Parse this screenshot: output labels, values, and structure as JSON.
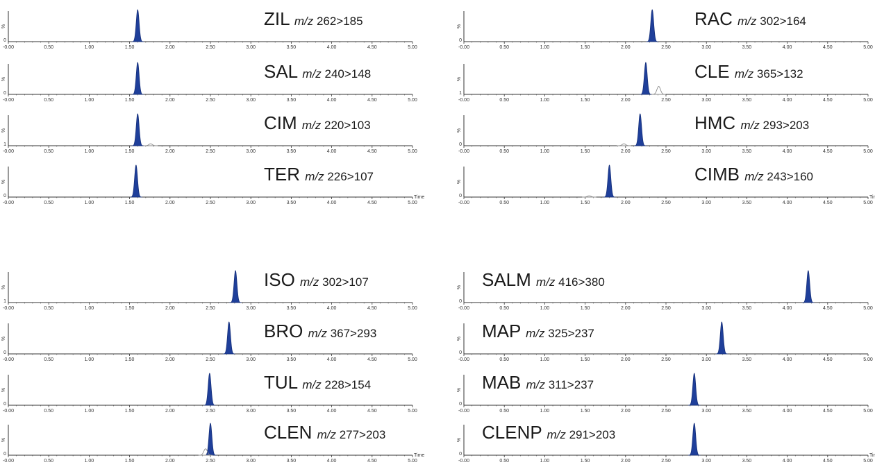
{
  "chart_data": [
    {
      "type": "line",
      "compound": "ZIL",
      "mz_label": "m/z",
      "transition": "262>185",
      "y_axis_symbol": "%",
      "y_zero_label": "0",
      "x_ticks": [
        "-0.00",
        "0.50",
        "1.00",
        "1.50",
        "2.00",
        "2.50",
        "3.00",
        "3.50",
        "4.00",
        "4.50",
        "5.00"
      ],
      "xlim": [
        0,
        5
      ],
      "time_label": "",
      "peaks": [
        {
          "rt": 1.6,
          "height": 1.0,
          "filled": true
        }
      ]
    },
    {
      "type": "line",
      "compound": "SAL",
      "mz_label": "m/z",
      "transition": "240>148",
      "y_axis_symbol": "%",
      "y_zero_label": "0",
      "x_ticks": [
        "-0.00",
        "0.50",
        "1.00",
        "1.50",
        "2.00",
        "2.50",
        "3.00",
        "3.50",
        "4.00",
        "4.50",
        "5.00"
      ],
      "xlim": [
        0,
        5
      ],
      "time_label": "",
      "peaks": [
        {
          "rt": 1.6,
          "height": 1.0,
          "filled": true
        }
      ]
    },
    {
      "type": "line",
      "compound": "CIM",
      "mz_label": "m/z",
      "transition": "220>103",
      "y_axis_symbol": "%",
      "y_zero_label": "1",
      "x_ticks": [
        "-0.00",
        "0.50",
        "1.00",
        "1.50",
        "2.00",
        "2.50",
        "3.00",
        "3.50",
        "4.00",
        "4.50",
        "5.00"
      ],
      "xlim": [
        0,
        5
      ],
      "time_label": "",
      "peaks": [
        {
          "rt": 1.6,
          "height": 1.0,
          "filled": true
        },
        {
          "rt": 1.76,
          "height": 0.06,
          "filled": false
        }
      ]
    },
    {
      "type": "line",
      "compound": "TER",
      "mz_label": "m/z",
      "transition": "226>107",
      "y_axis_symbol": "%",
      "y_zero_label": "0",
      "x_ticks": [
        "-0.00",
        "0.50",
        "1.00",
        "1.50",
        "2.00",
        "2.50",
        "3.00",
        "3.50",
        "4.00",
        "4.50",
        "5.00"
      ],
      "xlim": [
        0,
        5
      ],
      "time_label": "Time",
      "peaks": [
        {
          "rt": 1.58,
          "height": 1.0,
          "filled": true
        }
      ]
    },
    {
      "type": "line",
      "compound": "RAC",
      "mz_label": "m/z",
      "transition": "302>164",
      "y_axis_symbol": "%",
      "y_zero_label": "0",
      "x_ticks": [
        "-0.00",
        "0.50",
        "1.00",
        "1.50",
        "2.00",
        "2.50",
        "3.00",
        "3.50",
        "4.00",
        "4.50",
        "5.00"
      ],
      "xlim": [
        0,
        5
      ],
      "time_label": "",
      "peaks": [
        {
          "rt": 2.33,
          "height": 1.0,
          "filled": true
        }
      ]
    },
    {
      "type": "line",
      "compound": "CLE",
      "mz_label": "m/z",
      "transition": "365>132",
      "y_axis_symbol": "%",
      "y_zero_label": "1",
      "x_ticks": [
        "-0.00",
        "0.50",
        "1.00",
        "1.50",
        "2.00",
        "2.50",
        "3.00",
        "3.50",
        "4.00",
        "4.50",
        "5.00"
      ],
      "xlim": [
        0,
        5
      ],
      "time_label": "",
      "peaks": [
        {
          "rt": 2.25,
          "height": 1.0,
          "filled": true
        },
        {
          "rt": 2.41,
          "height": 0.25,
          "filled": false
        }
      ]
    },
    {
      "type": "line",
      "compound": "HMC",
      "mz_label": "m/z",
      "transition": "293>203",
      "y_axis_symbol": "%",
      "y_zero_label": "0",
      "x_ticks": [
        "-0.00",
        "0.50",
        "1.00",
        "1.50",
        "2.00",
        "2.50",
        "3.00",
        "3.50",
        "4.00",
        "4.50",
        "5.00"
      ],
      "xlim": [
        0,
        5
      ],
      "time_label": "",
      "peaks": [
        {
          "rt": 2.18,
          "height": 1.0,
          "filled": true
        },
        {
          "rt": 1.98,
          "height": 0.06,
          "filled": false
        }
      ]
    },
    {
      "type": "line",
      "compound": "CIMB",
      "mz_label": "m/z",
      "transition": "243>160",
      "y_axis_symbol": "%",
      "y_zero_label": "0",
      "x_ticks": [
        "-0.00",
        "0.50",
        "1.00",
        "1.50",
        "2.00",
        "2.50",
        "3.00",
        "3.50",
        "4.00",
        "4.50",
        "5.00"
      ],
      "xlim": [
        0,
        5
      ],
      "time_label": "Time",
      "peaks": [
        {
          "rt": 1.8,
          "height": 1.0,
          "filled": true
        },
        {
          "rt": 1.55,
          "height": 0.04,
          "filled": false
        }
      ]
    },
    {
      "type": "line",
      "compound": "ISO",
      "mz_label": "m/z",
      "transition": "302>107",
      "y_axis_symbol": "%",
      "y_zero_label": "1",
      "x_ticks": [
        "-0.00",
        "0.50",
        "1.00",
        "1.50",
        "2.00",
        "2.50",
        "3.00",
        "3.50",
        "4.00",
        "4.50",
        "5.00"
      ],
      "xlim": [
        0,
        5
      ],
      "time_label": "",
      "peaks": [
        {
          "rt": 2.81,
          "height": 1.0,
          "filled": true
        }
      ]
    },
    {
      "type": "line",
      "compound": "BRO",
      "mz_label": "m/z",
      "transition": "367>293",
      "y_axis_symbol": "%",
      "y_zero_label": "0",
      "x_ticks": [
        "-0.00",
        "0.50",
        "1.00",
        "1.50",
        "2.00",
        "2.50",
        "3.00",
        "3.50",
        "4.00",
        "4.50",
        "5.00"
      ],
      "xlim": [
        0,
        5
      ],
      "time_label": "",
      "peaks": [
        {
          "rt": 2.73,
          "height": 1.0,
          "filled": true
        }
      ]
    },
    {
      "type": "line",
      "compound": "TUL",
      "mz_label": "m/z",
      "transition": "228>154",
      "y_axis_symbol": "%",
      "y_zero_label": "0",
      "x_ticks": [
        "-0.00",
        "0.50",
        "1.00",
        "1.50",
        "2.00",
        "2.50",
        "3.00",
        "3.50",
        "4.00",
        "4.50",
        "5.00"
      ],
      "xlim": [
        0,
        5
      ],
      "time_label": "",
      "peaks": [
        {
          "rt": 2.49,
          "height": 1.0,
          "filled": true
        }
      ]
    },
    {
      "type": "line",
      "compound": "CLEN",
      "mz_label": "m/z",
      "transition": "277>203",
      "y_axis_symbol": "%",
      "y_zero_label": "0",
      "x_ticks": [
        "-0.00",
        "0.50",
        "1.00",
        "1.50",
        "2.00",
        "2.50",
        "3.00",
        "3.50",
        "4.00",
        "4.50",
        "5.00"
      ],
      "xlim": [
        0,
        5
      ],
      "time_label": "Time",
      "peaks": [
        {
          "rt": 2.5,
          "height": 1.0,
          "filled": true
        },
        {
          "rt": 2.44,
          "height": 0.2,
          "filled": false
        }
      ]
    },
    {
      "type": "line",
      "compound": "SALM",
      "mz_label": "m/z",
      "transition": "416>380",
      "y_axis_symbol": "%",
      "y_zero_label": "0",
      "x_ticks": [
        "-0.00",
        "0.50",
        "1.00",
        "1.50",
        "2.00",
        "2.50",
        "3.00",
        "3.50",
        "4.00",
        "4.50",
        "5.00"
      ],
      "xlim": [
        0,
        5
      ],
      "time_label": "",
      "peaks": [
        {
          "rt": 4.26,
          "height": 1.0,
          "filled": true
        }
      ]
    },
    {
      "type": "line",
      "compound": "MAP",
      "mz_label": "m/z",
      "transition": "325>237",
      "y_axis_symbol": "%",
      "y_zero_label": "0",
      "x_ticks": [
        "-0.00",
        "0.50",
        "1.00",
        "1.50",
        "2.00",
        "2.50",
        "3.00",
        "3.50",
        "4.00",
        "4.50",
        "5.00"
      ],
      "xlim": [
        0,
        5
      ],
      "time_label": "",
      "peaks": [
        {
          "rt": 3.19,
          "height": 1.0,
          "filled": true
        }
      ]
    },
    {
      "type": "line",
      "compound": "MAB",
      "mz_label": "m/z",
      "transition": "311>237",
      "y_axis_symbol": "%",
      "y_zero_label": "0",
      "x_ticks": [
        "-0.00",
        "0.50",
        "1.00",
        "1.50",
        "2.00",
        "2.50",
        "3.00",
        "3.50",
        "4.00",
        "4.50",
        "5.00"
      ],
      "xlim": [
        0,
        5
      ],
      "time_label": "",
      "peaks": [
        {
          "rt": 2.85,
          "height": 1.0,
          "filled": true
        }
      ]
    },
    {
      "type": "line",
      "compound": "CLENP",
      "mz_label": "m/z",
      "transition": "291>203",
      "y_axis_symbol": "%",
      "y_zero_label": "0",
      "x_ticks": [
        "-0.00",
        "0.50",
        "1.00",
        "1.50",
        "2.00",
        "2.50",
        "3.00",
        "3.50",
        "4.00",
        "4.50",
        "5.00"
      ],
      "xlim": [
        0,
        5
      ],
      "time_label": "Time",
      "peaks": [
        {
          "rt": 2.85,
          "height": 1.0,
          "filled": true
        }
      ]
    }
  ],
  "colors": {
    "peak_fill": "#1f3f9a",
    "peak_stroke": "#16307a",
    "minor_peak": "#8a8a8a",
    "axis": "#333333",
    "label": "#1a1a1a"
  }
}
